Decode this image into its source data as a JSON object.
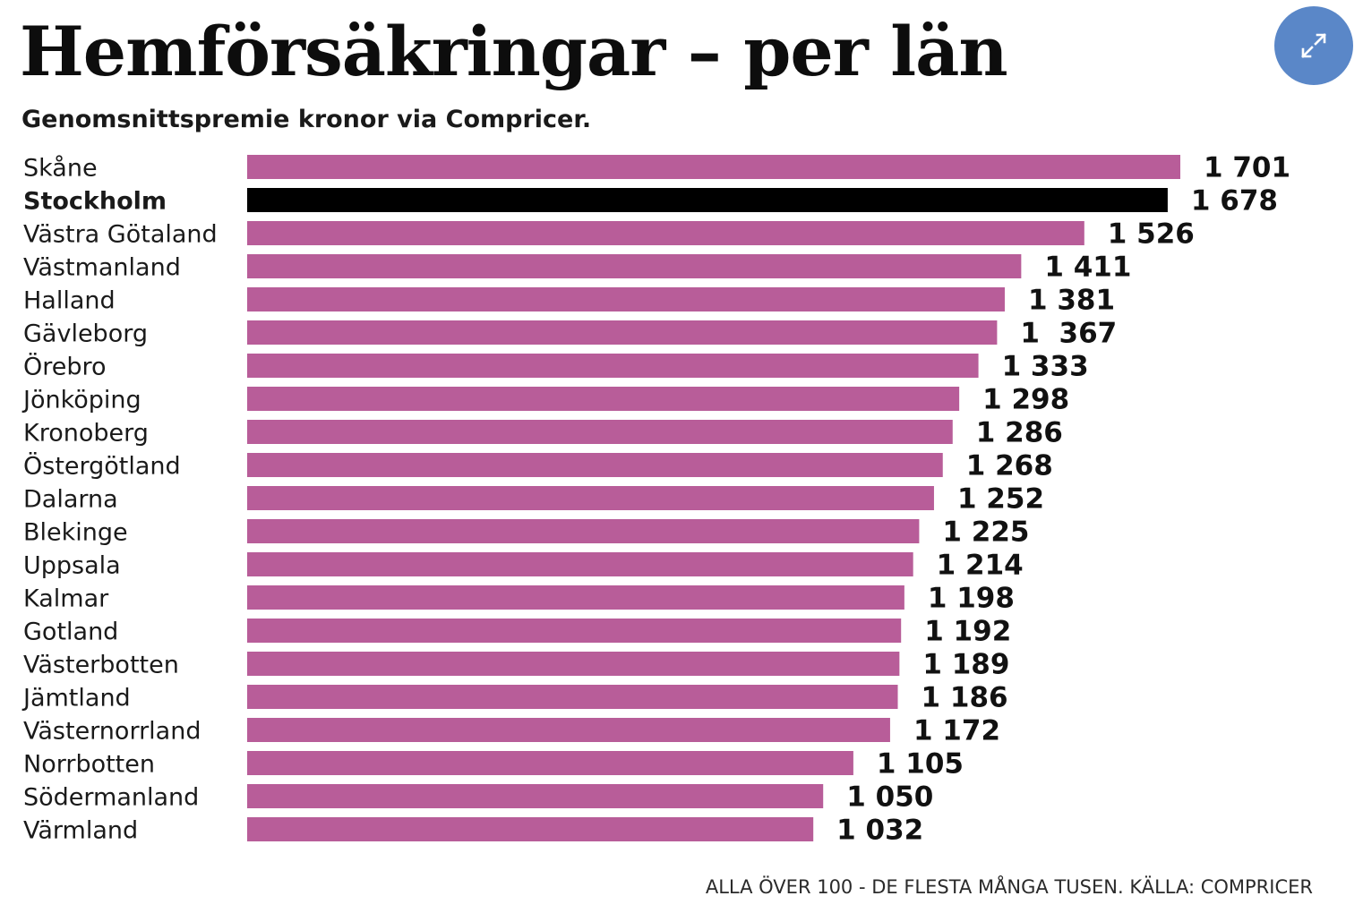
{
  "header": {
    "title": "Hemförsäkringar – per län",
    "subtitle": "Genomsnittspremie kronor via Compricer."
  },
  "controls": {
    "expand_icon": "expand-arrows-icon"
  },
  "colors": {
    "bar": "#b85d99",
    "highlight": "#000000",
    "expand_button": "#5a87c8"
  },
  "footer": {
    "note": "ALLA ÖVER 100 - DE FLESTA MÅNGA TUSEN. KÄLLA: COMPRICER"
  },
  "chart_data": {
    "type": "bar",
    "orientation": "horizontal",
    "title": "Hemförsäkringar – per län",
    "subtitle": "Genomsnittspremie kronor via Compricer.",
    "highlight": "Stockholm",
    "categories": [
      "Skåne",
      "Stockholm",
      "Västra Götaland",
      "Västmanland",
      "Halland",
      "Gävleborg",
      "Örebro",
      "Jönköping",
      "Kronoberg",
      "Östergötland",
      "Dalarna",
      "Blekinge",
      "Uppsala",
      "Kalmar",
      "Gotland",
      "Västerbotten",
      "Jämtland",
      "Västernorrland",
      "Norrbotten",
      "Södermanland",
      "Värmland"
    ],
    "values": [
      1701,
      1678,
      1526,
      1411,
      1381,
      1367,
      1333,
      1298,
      1286,
      1268,
      1252,
      1225,
      1214,
      1198,
      1192,
      1189,
      1186,
      1172,
      1105,
      1050,
      1032
    ],
    "value_labels": [
      "1 701",
      "1 678",
      "1 526",
      "1 411",
      "1 381",
      "1  367",
      "1 333",
      "1 298",
      "1 286",
      "1 268",
      "1 252",
      "1 225",
      "1 214",
      "1 198",
      "1 192",
      "1 189",
      "1 186",
      "1 172",
      "1 105",
      "1 050",
      "1 032"
    ],
    "grid": false,
    "legend": "none"
  }
}
